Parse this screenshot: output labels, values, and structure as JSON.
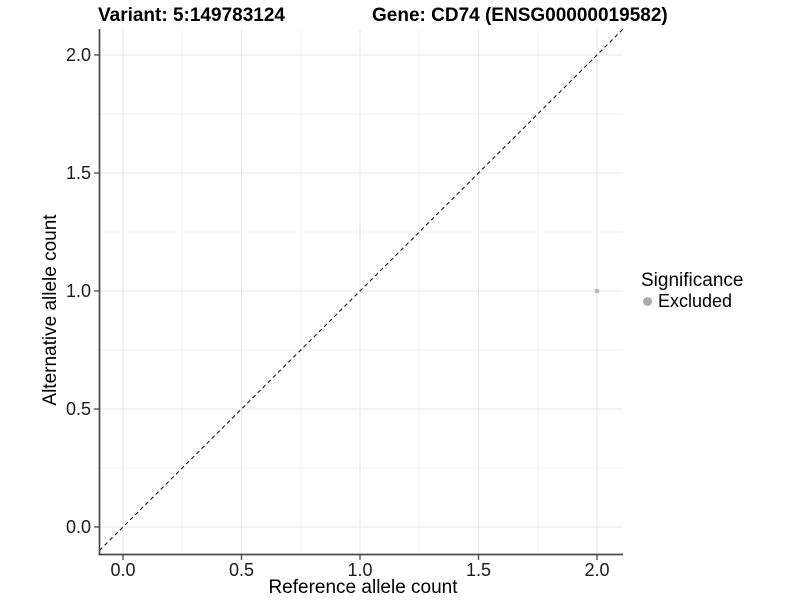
{
  "chart_data": {
    "type": "scatter",
    "title_left": "Variant: 5:149783124",
    "title_right": "Gene: CD74 (ENSG00000019582)",
    "xlabel": "Reference allele count",
    "ylabel": "Alternative allele count",
    "xlim": [
      -0.1,
      2.11
    ],
    "ylim": [
      -0.11,
      2.11
    ],
    "x_ticks": [
      0,
      0.5,
      1,
      1.5,
      2
    ],
    "y_ticks": [
      0,
      0.5,
      1,
      1.5,
      2
    ],
    "x_tick_labels": [
      "0.0",
      "0.5",
      "1.0",
      "1.5",
      "2.0"
    ],
    "y_tick_labels": [
      "0.0",
      "0.5",
      "1.0",
      "1.5",
      "2.0"
    ],
    "x_minor_ticks": [
      0.25,
      0.75,
      1.25,
      1.75
    ],
    "y_minor_ticks": [
      0.25,
      0.75,
      1.25,
      1.75
    ],
    "grid": true,
    "reference_line": {
      "type": "identity",
      "style": "dashed",
      "color": "#1a1a1a"
    },
    "series": [
      {
        "name": "Excluded",
        "color": "#b8b8b8",
        "point_radius": 2.3,
        "points": [
          {
            "x": 2.0,
            "y": 1.0
          }
        ]
      }
    ],
    "legend": {
      "title": "Significance",
      "position": "right",
      "entries": [
        {
          "label": "Excluded",
          "color": "#ababab"
        }
      ]
    }
  },
  "style": {
    "background": "#ffffff",
    "grid_major_color": "#e6e6e6",
    "grid_minor_color": "#f3f3f3",
    "axis_line_color": "#4a4a4a",
    "tick_color": "#555555",
    "text_color": "#1a1a1a"
  }
}
